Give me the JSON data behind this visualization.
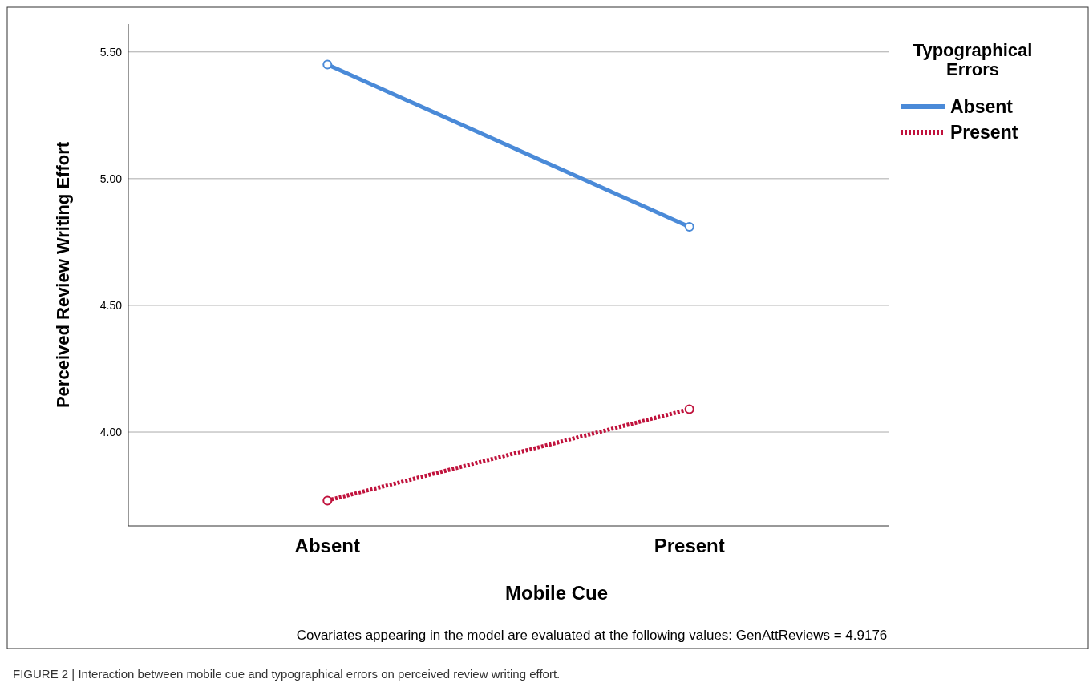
{
  "chart_data": {
    "type": "line",
    "xlabel": "Mobile Cue",
    "ylabel": "Perceived Review Writing Effort",
    "legend_title": "Typographical Errors",
    "categories": [
      "Absent",
      "Present"
    ],
    "series": [
      {
        "name": "Absent",
        "color": "#4a8ad8",
        "values": [
          5.45,
          4.81
        ],
        "line_style": "solid"
      },
      {
        "name": "Present",
        "color": "#c0123c",
        "values": [
          3.73,
          4.09
        ],
        "line_style": "dotted"
      }
    ],
    "ylim": [
      3.63,
      5.61
    ],
    "yticks": [
      {
        "value": 4,
        "label": "4.00"
      },
      {
        "value": 4.5,
        "label": "4.50"
      },
      {
        "value": 5,
        "label": "5.00"
      },
      {
        "value": 5.5,
        "label": "5.50"
      }
    ],
    "grid": "y",
    "legend": "top right",
    "marker": "circle",
    "annotations": [
      "Covariates appearing in the model are evaluated at the following values: GenAttReviews = 4.9176",
      "FIGURE 2 | Interaction between mobile cue and typographical errors on perceived review writing effort."
    ]
  }
}
